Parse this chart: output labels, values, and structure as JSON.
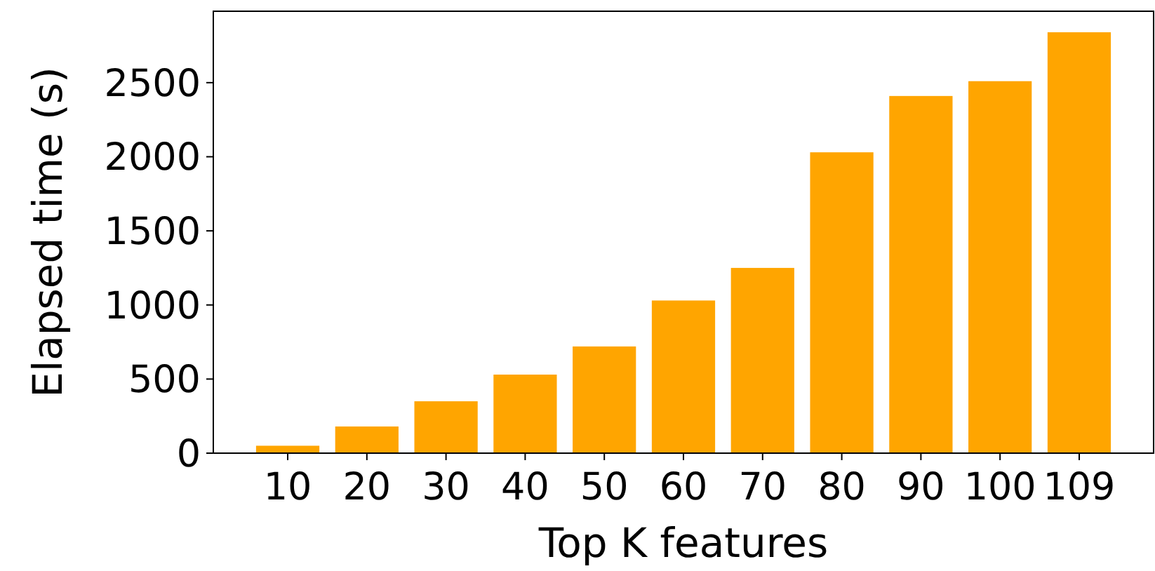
{
  "chart_data": {
    "type": "bar",
    "xlabel": "Top K features",
    "ylabel": "Elapsed time (s)",
    "categories": [
      "10",
      "20",
      "30",
      "40",
      "50",
      "60",
      "70",
      "80",
      "90",
      "100",
      "109"
    ],
    "values": [
      50,
      180,
      350,
      530,
      720,
      1030,
      1250,
      2030,
      2410,
      2510,
      2840
    ],
    "color": "#ffa500",
    "ylim": [
      0,
      2982
    ],
    "yticks": [
      0,
      500,
      1000,
      1500,
      2000,
      2500
    ],
    "grid": false
  }
}
